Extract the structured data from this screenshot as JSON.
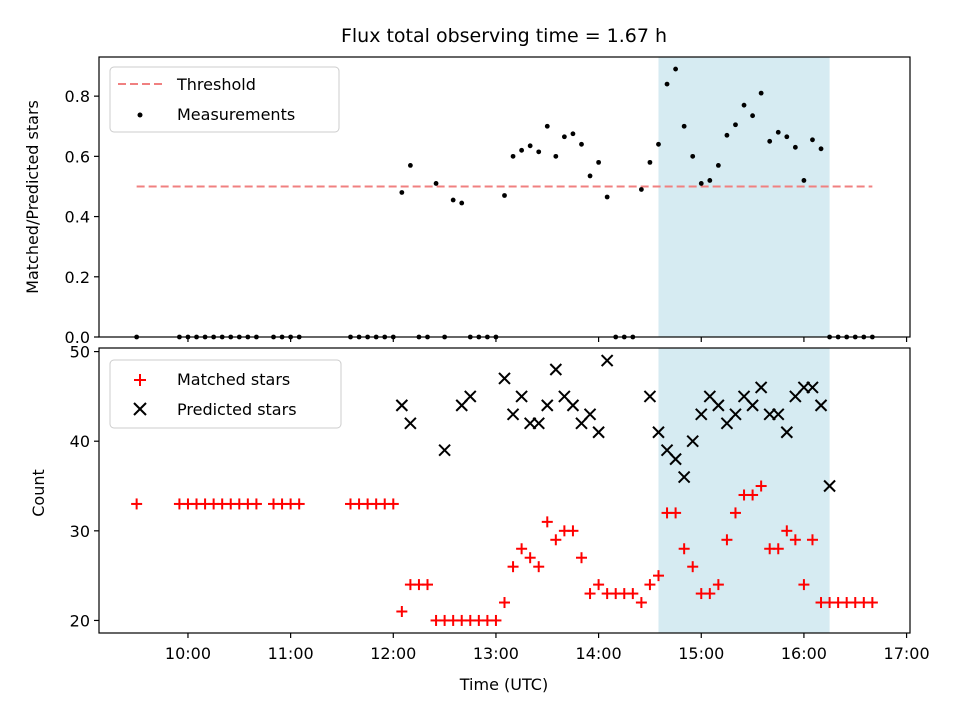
{
  "chart_data": [
    {
      "type": "scatter",
      "title": "Flux total observing time = 1.67 h",
      "xlabel": "",
      "ylabel": "Matched/Predicted stars",
      "xlim": [
        "09:08",
        "17:02"
      ],
      "ylim": [
        0.0,
        0.93
      ],
      "yticks": [
        0.0,
        0.2,
        0.4,
        0.6,
        0.8
      ],
      "ytick_labels": [
        "0.0",
        "0.2",
        "0.4",
        "0.6",
        "0.8"
      ],
      "highlight_span": [
        "14:35",
        "16:15"
      ],
      "highlight_color": "#add8e6",
      "legend_position": "top-left",
      "threshold": {
        "name": "Threshold",
        "value": 0.5,
        "x": [
          "09:30",
          "16:40"
        ],
        "color": "#f08080",
        "style": "dashed"
      },
      "series": [
        {
          "name": "Measurements",
          "color": "#000000",
          "marker": "dot",
          "x": [
            "09:30",
            "09:55",
            "10:00",
            "10:05",
            "10:10",
            "10:15",
            "10:20",
            "10:25",
            "10:30",
            "10:35",
            "10:40",
            "10:50",
            "10:55",
            "11:00",
            "11:05",
            "11:35",
            "11:40",
            "11:45",
            "11:50",
            "11:55",
            "12:00",
            "12:05",
            "12:10",
            "12:15",
            "12:20",
            "12:25",
            "12:30",
            "12:35",
            "12:40",
            "12:45",
            "12:50",
            "12:55",
            "13:00",
            "13:05",
            "13:10",
            "13:15",
            "13:20",
            "13:25",
            "13:30",
            "13:35",
            "13:40",
            "13:45",
            "13:50",
            "13:55",
            "14:00",
            "14:05",
            "14:10",
            "14:15",
            "14:20",
            "14:25",
            "14:30",
            "14:35",
            "14:40",
            "14:45",
            "14:50",
            "14:55",
            "15:00",
            "15:05",
            "15:10",
            "15:15",
            "15:20",
            "15:25",
            "15:30",
            "15:35",
            "15:40",
            "15:45",
            "15:50",
            "15:55",
            "16:00",
            "16:05",
            "16:10",
            "16:15",
            "16:20",
            "16:25",
            "16:30",
            "16:35",
            "16:40"
          ],
          "y": [
            0.0,
            0.0,
            0.0,
            0.0,
            0.0,
            0.0,
            0.0,
            0.0,
            0.0,
            0.0,
            0.0,
            0.0,
            0.0,
            0.0,
            0.0,
            0.0,
            0.0,
            0.0,
            0.0,
            0.0,
            0.0,
            0.48,
            0.57,
            0.0,
            0.0,
            0.51,
            0.0,
            0.455,
            0.445,
            0.0,
            0.0,
            0.0,
            0.0,
            0.47,
            0.6,
            0.62,
            0.635,
            0.615,
            0.7,
            0.6,
            0.665,
            0.675,
            0.64,
            0.535,
            0.58,
            0.465,
            0.0,
            0.0,
            0.0,
            0.49,
            0.58,
            0.64,
            0.84,
            0.89,
            0.7,
            0.6,
            0.51,
            0.52,
            0.57,
            0.67,
            0.705,
            0.77,
            0.735,
            0.81,
            0.65,
            0.68,
            0.665,
            0.63,
            0.52,
            0.655,
            0.625,
            0.0,
            0.0,
            0.0,
            0.0,
            0.0,
            0.0
          ]
        }
      ]
    },
    {
      "type": "scatter",
      "title": "",
      "xlabel": "Time (UTC)",
      "ylabel": "Count",
      "xlim": [
        "09:08",
        "17:02"
      ],
      "ylim": [
        18.6,
        50.4
      ],
      "yticks": [
        20,
        30,
        40,
        50
      ],
      "ytick_labels": [
        "20",
        "30",
        "40",
        "50"
      ],
      "xticks": [
        "10:00",
        "11:00",
        "12:00",
        "13:00",
        "14:00",
        "15:00",
        "16:00",
        "17:00"
      ],
      "xtick_labels": [
        "10:00",
        "11:00",
        "12:00",
        "13:00",
        "14:00",
        "15:00",
        "16:00",
        "17:00"
      ],
      "highlight_span": [
        "14:35",
        "16:15"
      ],
      "highlight_color": "#add8e6",
      "legend_position": "top-left",
      "series": [
        {
          "name": "Matched stars",
          "color": "#ff0000",
          "marker": "plus",
          "x": [
            "09:30",
            "09:55",
            "10:00",
            "10:05",
            "10:10",
            "10:15",
            "10:20",
            "10:25",
            "10:30",
            "10:35",
            "10:40",
            "10:50",
            "10:55",
            "11:00",
            "11:05",
            "11:35",
            "11:40",
            "11:45",
            "11:50",
            "11:55",
            "12:00",
            "12:05",
            "12:10",
            "12:15",
            "12:20",
            "12:25",
            "12:30",
            "12:35",
            "12:40",
            "12:45",
            "12:50",
            "12:55",
            "13:00",
            "13:05",
            "13:10",
            "13:15",
            "13:20",
            "13:25",
            "13:30",
            "13:35",
            "13:40",
            "13:45",
            "13:50",
            "13:55",
            "14:00",
            "14:05",
            "14:10",
            "14:15",
            "14:20",
            "14:25",
            "14:30",
            "14:35",
            "14:40",
            "14:45",
            "14:50",
            "14:55",
            "15:00",
            "15:05",
            "15:10",
            "15:15",
            "15:20",
            "15:25",
            "15:30",
            "15:35",
            "15:40",
            "15:45",
            "15:50",
            "15:55",
            "16:00",
            "16:05",
            "16:10",
            "16:15",
            "16:20",
            "16:25",
            "16:30",
            "16:35",
            "16:40"
          ],
          "y": [
            33,
            33,
            33,
            33,
            33,
            33,
            33,
            33,
            33,
            33,
            33,
            33,
            33,
            33,
            33,
            33,
            33,
            33,
            33,
            33,
            33,
            21,
            24,
            24,
            24,
            20,
            20,
            20,
            20,
            20,
            20,
            20,
            20,
            22,
            26,
            28,
            27,
            26,
            31,
            29,
            30,
            30,
            27,
            23,
            24,
            23,
            23,
            23,
            23,
            22,
            24,
            25,
            32,
            32,
            28,
            26,
            23,
            23,
            24,
            29,
            32,
            34,
            34,
            35,
            28,
            28,
            30,
            29,
            24,
            29,
            22,
            22,
            22,
            22,
            22,
            22,
            22
          ]
        },
        {
          "name": "Predicted stars",
          "color": "#000000",
          "marker": "x",
          "x": [
            "12:05",
            "12:10",
            "12:30",
            "12:40",
            "12:45",
            "13:05",
            "13:10",
            "13:15",
            "13:20",
            "13:25",
            "13:30",
            "13:35",
            "13:40",
            "13:45",
            "13:50",
            "13:55",
            "14:00",
            "14:05",
            "14:30",
            "14:35",
            "14:40",
            "14:45",
            "14:50",
            "14:55",
            "15:00",
            "15:05",
            "15:10",
            "15:15",
            "15:20",
            "15:25",
            "15:30",
            "15:35",
            "15:40",
            "15:45",
            "15:50",
            "15:55",
            "16:00",
            "16:05",
            "16:10",
            "16:15"
          ],
          "y": [
            44,
            42,
            39,
            44,
            45,
            47,
            43,
            45,
            42,
            42,
            44,
            48,
            45,
            44,
            42,
            43,
            41,
            49,
            45,
            41,
            39,
            38,
            36,
            40,
            43,
            45,
            44,
            42,
            43,
            45,
            44,
            46,
            43,
            43,
            41,
            45,
            46,
            46,
            44,
            35
          ]
        }
      ]
    }
  ]
}
